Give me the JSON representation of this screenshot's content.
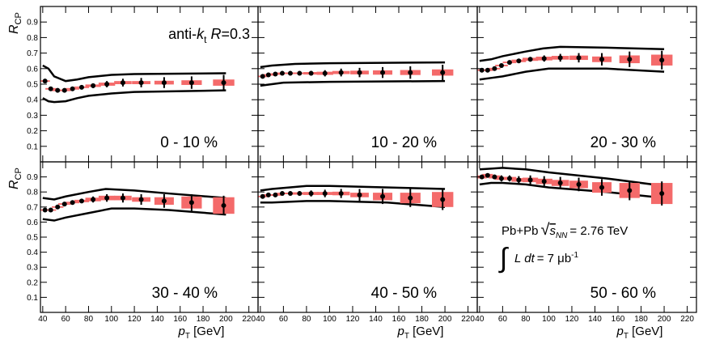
{
  "chart_data": [
    {
      "type": "errorbar",
      "title": "0 - 10 %",
      "ylabel": "R",
      "ylabel_sub": "CP",
      "x": [
        42,
        47,
        53,
        59,
        66,
        74,
        84,
        96,
        110,
        126,
        146,
        170,
        198
      ],
      "values": [
        0.52,
        0.47,
        0.46,
        0.46,
        0.47,
        0.48,
        0.49,
        0.5,
        0.51,
        0.51,
        0.51,
        0.51,
        0.51
      ],
      "errors": [
        0.005,
        0.005,
        0.005,
        0.005,
        0.008,
        0.01,
        0.015,
        0.02,
        0.025,
        0.03,
        0.035,
        0.04,
        0.05
      ],
      "syst": [
        0.005,
        0.005,
        0.005,
        0.005,
        0.005,
        0.005,
        0.008,
        0.01,
        0.01,
        0.01,
        0.012,
        0.015,
        0.02
      ],
      "band_upper": {
        "x": [
          40,
          45,
          50,
          60,
          70,
          80,
          100,
          120,
          200
        ],
        "values": [
          0.62,
          0.6,
          0.55,
          0.52,
          0.53,
          0.545,
          0.56,
          0.565,
          0.57
        ]
      },
      "band_lower": {
        "x": [
          40,
          45,
          50,
          60,
          70,
          80,
          100,
          120,
          200
        ],
        "values": [
          0.41,
          0.39,
          0.385,
          0.39,
          0.41,
          0.425,
          0.44,
          0.45,
          0.46
        ]
      },
      "annotation": {
        "a": "anti-",
        "k": "k",
        "t": "t",
        "r": " R",
        "v": "=0.3"
      },
      "xlim": [
        38,
        228
      ],
      "ylim": [
        0,
        1
      ],
      "xticks": [
        40,
        60,
        80,
        100,
        120,
        140,
        160,
        180,
        200,
        220
      ],
      "yticks": [
        0.1,
        0.2,
        0.3,
        0.4,
        0.5,
        0.6,
        0.7,
        0.8,
        0.9
      ],
      "color": "#000000",
      "syst_color": "#f46a6a"
    },
    {
      "type": "errorbar",
      "title": "10 - 20 %",
      "x": [
        42,
        47,
        53,
        59,
        66,
        74,
        84,
        96,
        110,
        126,
        146,
        170,
        198
      ],
      "values": [
        0.55,
        0.56,
        0.565,
        0.57,
        0.57,
        0.57,
        0.57,
        0.57,
        0.575,
        0.575,
        0.575,
        0.575,
        0.575
      ],
      "errors": [
        0.005,
        0.005,
        0.005,
        0.005,
        0.008,
        0.01,
        0.015,
        0.02,
        0.025,
        0.03,
        0.035,
        0.04,
        0.05
      ],
      "syst": [
        0.005,
        0.005,
        0.005,
        0.005,
        0.005,
        0.005,
        0.008,
        0.01,
        0.01,
        0.012,
        0.014,
        0.016,
        0.02
      ],
      "band_upper": {
        "x": [
          40,
          50,
          70,
          100,
          200
        ],
        "values": [
          0.61,
          0.62,
          0.63,
          0.635,
          0.64
        ]
      },
      "band_lower": {
        "x": [
          40,
          50,
          60,
          100,
          200
        ],
        "values": [
          0.49,
          0.5,
          0.51,
          0.515,
          0.52
        ]
      },
      "xlim": [
        38,
        228
      ],
      "ylim": [
        0,
        1
      ],
      "xticks": [
        40,
        60,
        80,
        100,
        120,
        140,
        160,
        180,
        200,
        220
      ],
      "yticks": [
        0.1,
        0.2,
        0.3,
        0.4,
        0.5,
        0.6,
        0.7,
        0.8,
        0.9
      ],
      "color": "#000000",
      "syst_color": "#f46a6a"
    },
    {
      "type": "errorbar",
      "title": "20 - 30 %",
      "x": [
        42,
        47,
        53,
        59,
        66,
        74,
        84,
        96,
        110,
        126,
        146,
        170,
        198
      ],
      "values": [
        0.59,
        0.59,
        0.6,
        0.62,
        0.64,
        0.65,
        0.66,
        0.665,
        0.67,
        0.67,
        0.66,
        0.66,
        0.655
      ],
      "errors": [
        0.005,
        0.005,
        0.005,
        0.005,
        0.008,
        0.01,
        0.015,
        0.02,
        0.025,
        0.03,
        0.04,
        0.05,
        0.06
      ],
      "syst": [
        0.005,
        0.005,
        0.005,
        0.005,
        0.005,
        0.008,
        0.01,
        0.012,
        0.012,
        0.014,
        0.018,
        0.025,
        0.035
      ],
      "band_upper": {
        "x": [
          40,
          50,
          60,
          80,
          95,
          110,
          150,
          200
        ],
        "values": [
          0.65,
          0.66,
          0.68,
          0.71,
          0.73,
          0.74,
          0.735,
          0.725
        ]
      },
      "band_lower": {
        "x": [
          40,
          50,
          60,
          80,
          100,
          150,
          200
        ],
        "values": [
          0.53,
          0.54,
          0.55,
          0.58,
          0.6,
          0.6,
          0.58
        ]
      },
      "xlim": [
        38,
        228
      ],
      "ylim": [
        0,
        1
      ],
      "xticks": [
        40,
        60,
        80,
        100,
        120,
        140,
        160,
        180,
        200,
        220
      ],
      "yticks": [
        0.1,
        0.2,
        0.3,
        0.4,
        0.5,
        0.6,
        0.7,
        0.8,
        0.9
      ],
      "color": "#000000",
      "syst_color": "#f46a6a"
    },
    {
      "type": "errorbar",
      "title": "30 - 40 %",
      "ylabel": "R",
      "ylabel_sub": "CP",
      "xlabel": "p",
      "xlabel_sub": "T",
      "xlabel_unit": " [GeV]",
      "x": [
        42,
        47,
        53,
        59,
        66,
        74,
        84,
        96,
        110,
        126,
        146,
        170,
        198
      ],
      "values": [
        0.68,
        0.68,
        0.7,
        0.72,
        0.73,
        0.74,
        0.75,
        0.76,
        0.76,
        0.75,
        0.74,
        0.73,
        0.71
      ],
      "errors": [
        0.005,
        0.005,
        0.005,
        0.005,
        0.008,
        0.01,
        0.02,
        0.025,
        0.03,
        0.035,
        0.045,
        0.055,
        0.065
      ],
      "syst": [
        0.005,
        0.005,
        0.005,
        0.005,
        0.005,
        0.008,
        0.012,
        0.015,
        0.015,
        0.015,
        0.025,
        0.04,
        0.055
      ],
      "band_upper": {
        "x": [
          40,
          50,
          60,
          80,
          95,
          120,
          150,
          200
        ],
        "values": [
          0.76,
          0.75,
          0.77,
          0.8,
          0.82,
          0.81,
          0.79,
          0.76
        ]
      },
      "band_lower": {
        "x": [
          40,
          50,
          60,
          80,
          100,
          120,
          150,
          200
        ],
        "values": [
          0.62,
          0.61,
          0.63,
          0.66,
          0.69,
          0.69,
          0.68,
          0.65
        ]
      },
      "xlim": [
        38,
        228
      ],
      "ylim": [
        0,
        1
      ],
      "xticks": [
        40,
        60,
        80,
        100,
        120,
        140,
        160,
        180,
        200,
        220
      ],
      "yticks": [
        0.1,
        0.2,
        0.3,
        0.4,
        0.5,
        0.6,
        0.7,
        0.8,
        0.9
      ],
      "color": "#000000",
      "syst_color": "#f46a6a"
    },
    {
      "type": "errorbar",
      "title": "40 - 50 %",
      "xlabel": "p",
      "xlabel_sub": "T",
      "xlabel_unit": " [GeV]",
      "x": [
        42,
        47,
        53,
        59,
        66,
        74,
        84,
        96,
        110,
        126,
        146,
        170,
        198
      ],
      "values": [
        0.77,
        0.78,
        0.78,
        0.79,
        0.79,
        0.79,
        0.79,
        0.79,
        0.79,
        0.78,
        0.77,
        0.76,
        0.75
      ],
      "errors": [
        0.005,
        0.005,
        0.005,
        0.005,
        0.01,
        0.015,
        0.02,
        0.025,
        0.03,
        0.04,
        0.05,
        0.06,
        0.07
      ],
      "syst": [
        0.005,
        0.005,
        0.005,
        0.005,
        0.005,
        0.008,
        0.01,
        0.01,
        0.012,
        0.015,
        0.025,
        0.035,
        0.05
      ],
      "band_upper": {
        "x": [
          40,
          50,
          80,
          100,
          200
        ],
        "values": [
          0.81,
          0.82,
          0.84,
          0.84,
          0.82
        ]
      },
      "band_lower": {
        "x": [
          40,
          50,
          80,
          100,
          150,
          200
        ],
        "values": [
          0.73,
          0.73,
          0.74,
          0.74,
          0.73,
          0.7
        ]
      },
      "xlim": [
        38,
        228
      ],
      "ylim": [
        0,
        1
      ],
      "xticks": [
        40,
        60,
        80,
        100,
        120,
        140,
        160,
        180,
        200,
        220
      ],
      "yticks": [
        0.1,
        0.2,
        0.3,
        0.4,
        0.5,
        0.6,
        0.7,
        0.8,
        0.9
      ],
      "color": "#000000",
      "syst_color": "#f46a6a"
    },
    {
      "type": "errorbar",
      "title": "50 - 60 %",
      "xlabel": "p",
      "xlabel_sub": "T",
      "xlabel_unit": " [GeV]",
      "x": [
        42,
        47,
        53,
        59,
        66,
        74,
        84,
        96,
        110,
        126,
        146,
        170,
        198
      ],
      "values": [
        0.9,
        0.91,
        0.9,
        0.89,
        0.89,
        0.88,
        0.88,
        0.87,
        0.86,
        0.85,
        0.83,
        0.81,
        0.79
      ],
      "errors": [
        0.01,
        0.01,
        0.015,
        0.02,
        0.02,
        0.025,
        0.03,
        0.035,
        0.04,
        0.045,
        0.055,
        0.065,
        0.08
      ],
      "syst": [
        0.01,
        0.01,
        0.01,
        0.01,
        0.01,
        0.012,
        0.015,
        0.018,
        0.02,
        0.025,
        0.035,
        0.05,
        0.07
      ],
      "band_upper": {
        "x": [
          40,
          50,
          60,
          80,
          100,
          150,
          200
        ],
        "values": [
          0.95,
          0.955,
          0.96,
          0.95,
          0.93,
          0.89,
          0.84
        ]
      },
      "band_lower": {
        "x": [
          40,
          50,
          60,
          80,
          100,
          150,
          200
        ],
        "values": [
          0.85,
          0.86,
          0.86,
          0.85,
          0.83,
          0.8,
          0.76
        ]
      },
      "annotation": {
        "sys": "Pb+Pb",
        "root": "√",
        "s": "s",
        "nn": "NN",
        "energy": "= 2.76 TeV",
        "int": "∫",
        "ldt": "L dt",
        "lumi": "= 7 μb",
        "exp": "-1"
      },
      "xlim": [
        38,
        228
      ],
      "ylim": [
        0,
        1
      ],
      "xticks": [
        40,
        60,
        80,
        100,
        120,
        140,
        160,
        180,
        200,
        220
      ],
      "yticks": [
        0.1,
        0.2,
        0.3,
        0.4,
        0.5,
        0.6,
        0.7,
        0.8,
        0.9
      ],
      "color": "#000000",
      "syst_color": "#f46a6a"
    }
  ]
}
